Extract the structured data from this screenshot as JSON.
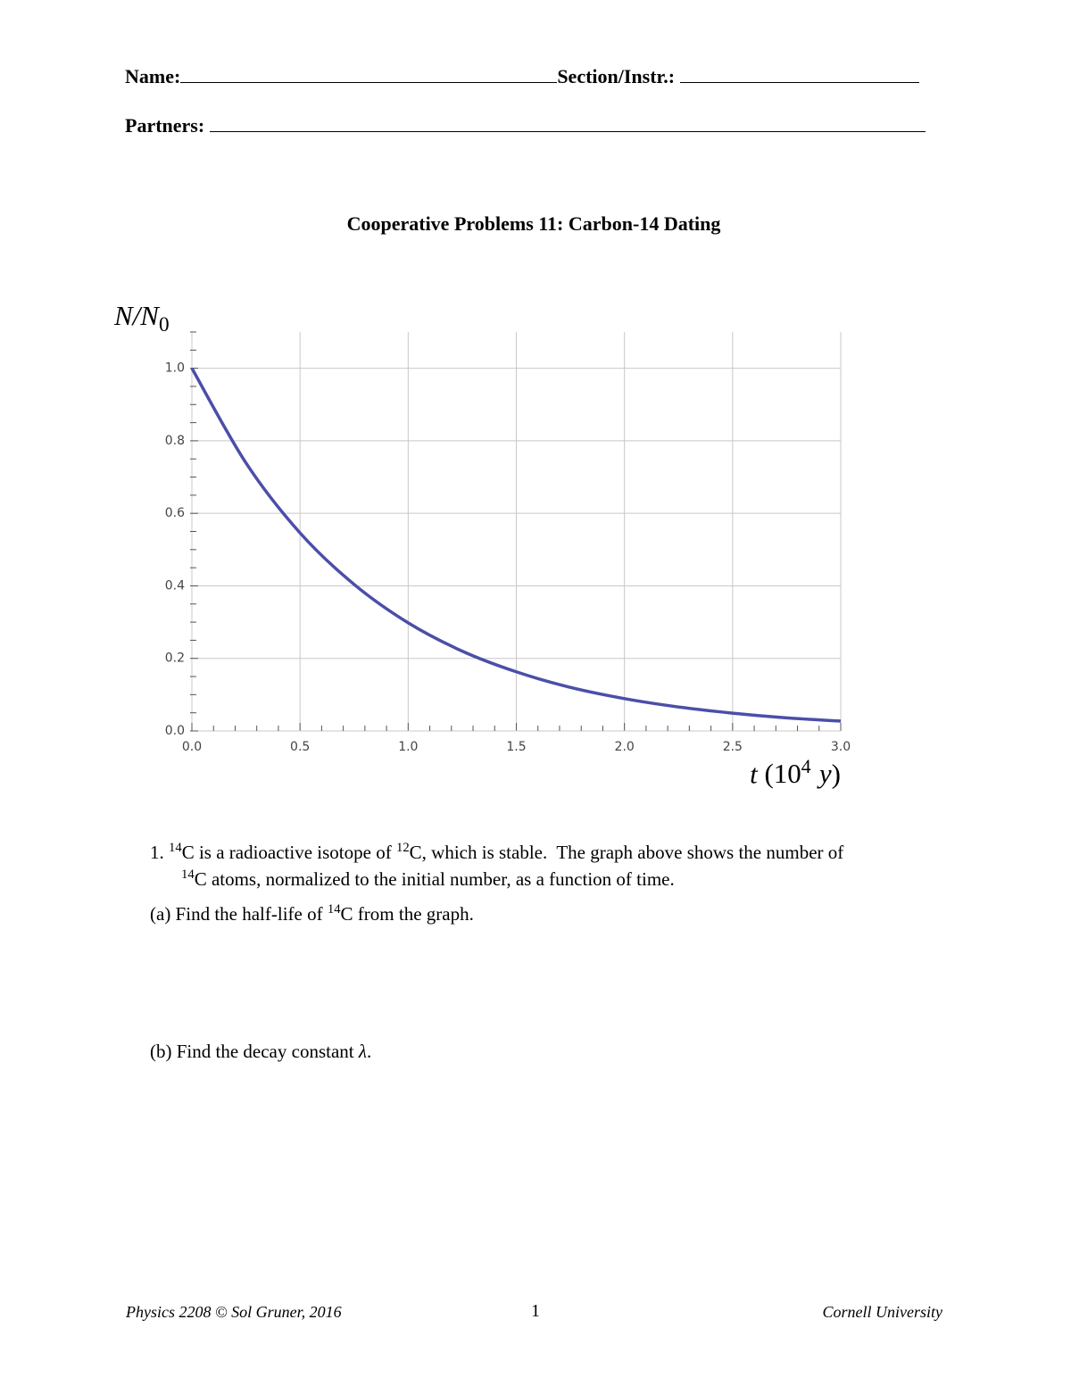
{
  "header": {
    "name_label": "Name:",
    "section_label": "Section/Instr.:",
    "partners_label": "Partners:"
  },
  "title": "Cooperative Problems 11: Carbon-14 Dating",
  "chart_data": {
    "type": "line",
    "ylabel": [
      {
        "text": "N/N",
        "italic": true
      },
      {
        "text": "0",
        "sub": true
      }
    ],
    "xlabel": [
      {
        "text": "t",
        "italic": true
      },
      {
        "text": "(10"
      },
      {
        "text": "4",
        "sup": true
      },
      {
        "text": "y",
        "italic": true,
        "space": true
      },
      {
        "text": ")"
      }
    ],
    "x": [
      0,
      0.25,
      0.5,
      0.75,
      1.0,
      1.25,
      1.5,
      1.75,
      2.0,
      2.25,
      2.5,
      2.75,
      3.0
    ],
    "values": [
      1.0,
      0.739,
      0.546,
      0.404,
      0.298,
      0.22,
      0.163,
      0.12,
      0.089,
      0.066,
      0.049,
      0.036,
      0.027
    ],
    "color": "#4b4fa8",
    "xlim": [
      0,
      3.0
    ],
    "ylim": [
      0,
      1.1
    ],
    "xticks": [
      {
        "value": 0,
        "label": "0.0"
      },
      0.5,
      {
        "value": 1,
        "label": "1.0"
      },
      1.5,
      {
        "value": 2,
        "label": "2.0"
      },
      2.5,
      {
        "value": 3,
        "label": "3.0"
      }
    ],
    "yticks": [
      {
        "value": 0,
        "label": "0.0"
      },
      0.2,
      0.4,
      0.6,
      0.8,
      {
        "value": 1,
        "label": "1.0"
      }
    ],
    "grid": true
  },
  "problem": {
    "number": "1.",
    "lines": [
      [
        {
          "text": "14",
          "sup": true
        },
        {
          "text": "C is a radioactive isotope of "
        },
        {
          "text": "12",
          "sup": true
        },
        {
          "text": "C, which is stable.  The graph above shows the number of"
        }
      ],
      [
        {
          "text": "14",
          "sup": true
        },
        {
          "text": "C atoms, normalized to the initial number, as a function of time."
        }
      ]
    ],
    "parts": [
      [
        {
          "text": "(a) Find the half-life of "
        },
        {
          "text": "14",
          "sup": true
        },
        {
          "text": "C from the graph."
        }
      ],
      [
        {
          "text": "(b) Find the decay constant "
        },
        {
          "text": "λ",
          "italic": true
        },
        {
          "text": "."
        }
      ]
    ]
  },
  "footer": {
    "left": "Physics 2208 © Sol Gruner, 2016",
    "center": "1",
    "right": "Cornell University"
  }
}
